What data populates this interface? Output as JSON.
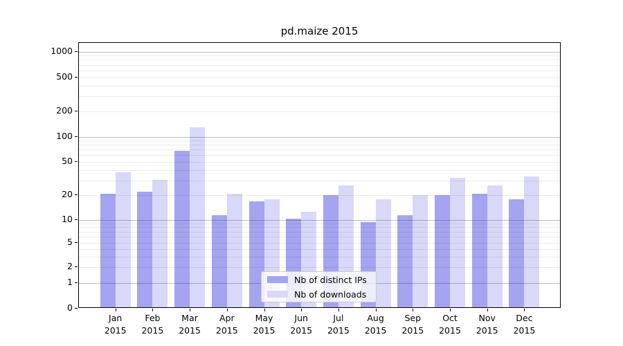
{
  "figure": {
    "title": "pd.maize 2015"
  },
  "chart_data": {
    "type": "bar",
    "title": "pd.maize 2015",
    "categories": [
      "Jan 2015",
      "Feb 2015",
      "Mar 2015",
      "Apr 2015",
      "May 2015",
      "Jun 2015",
      "Jul 2015",
      "Aug 2015",
      "Sep 2015",
      "Oct 2015",
      "Nov 2015",
      "Dec 2015"
    ],
    "x_months": [
      "Jan",
      "Feb",
      "Mar",
      "Apr",
      "May",
      "Jun",
      "Jul",
      "Aug",
      "Sep",
      "Oct",
      "Nov",
      "Dec"
    ],
    "x_year": "2015",
    "series": [
      {
        "name": "Nb of distinct IPs",
        "color": "#a4a4f0",
        "values": [
          20,
          21,
          65,
          11,
          16,
          10,
          19,
          9,
          11,
          19,
          20,
          17
        ]
      },
      {
        "name": "Nb of downloads",
        "color": "#d8d8f8",
        "values": [
          36,
          29,
          125,
          20,
          17,
          12,
          25,
          17,
          19,
          31,
          25,
          32
        ]
      }
    ],
    "yticks": [
      0,
      1,
      2,
      5,
      10,
      20,
      50,
      100,
      200,
      500,
      1000
    ],
    "yscale": "log-like with 0 baseline",
    "ylim": [
      0,
      1200
    ],
    "grid": "horizontal, faint minor lines at 2-9 per decade, gray major lines at 1/10/100/1000",
    "legend_position": "lower center",
    "xlabel": "",
    "ylabel": ""
  }
}
